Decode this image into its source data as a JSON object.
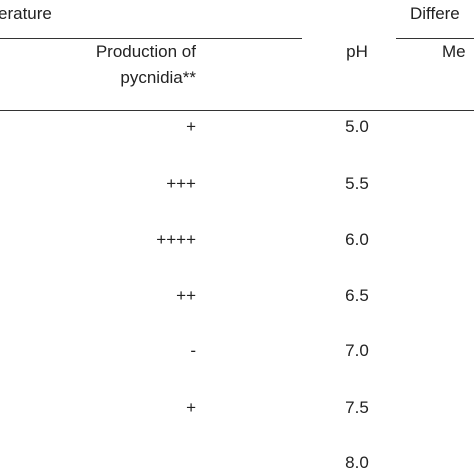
{
  "header": {
    "left_group": "erature",
    "right_group": "Differe"
  },
  "columns": {
    "production": [
      "Production of",
      "pycnidia**"
    ],
    "ph": "pH",
    "medium": "Me"
  },
  "rows": [
    {
      "production": "+",
      "ph": "5.0"
    },
    {
      "production": "+++",
      "ph": "5.5"
    },
    {
      "production": "++++",
      "ph": "6.0"
    },
    {
      "production": "++",
      "ph": "6.5"
    },
    {
      "production": "-",
      "ph": "7.0"
    },
    {
      "production": "+",
      "ph": "7.5"
    },
    {
      "ph": "8.0"
    }
  ]
}
